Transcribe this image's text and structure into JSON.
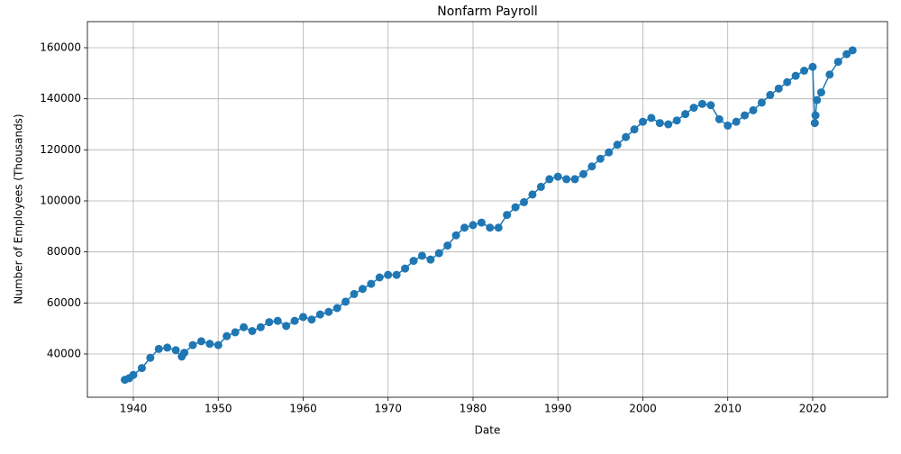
{
  "chart_data": {
    "type": "line",
    "title": "Nonfarm Payroll",
    "x_label": "Date",
    "y_label": "Number of Employees (Thousands)",
    "x": [
      1939,
      1939.5,
      1940,
      1941,
      1942,
      1943,
      1944,
      1945,
      1945.7,
      1946,
      1947,
      1948,
      1949,
      1950,
      1951,
      1952,
      1953,
      1954,
      1955,
      1956,
      1957,
      1958,
      1959,
      1960,
      1961,
      1962,
      1963,
      1964,
      1965,
      1966,
      1967,
      1968,
      1969,
      1970,
      1971,
      1972,
      1973,
      1974,
      1975,
      1976,
      1977,
      1978,
      1979,
      1980,
      1981,
      1982,
      1983,
      1984,
      1985,
      1986,
      1987,
      1988,
      1989,
      1990,
      1991,
      1992,
      1993,
      1994,
      1995,
      1996,
      1997,
      1998,
      1999,
      2000,
      2001,
      2002,
      2003,
      2004,
      2005,
      2006,
      2007,
      2008,
      2009,
      2010,
      2011,
      2012,
      2013,
      2014,
      2015,
      2016,
      2017,
      2018,
      2019,
      2020,
      2020.25,
      2020.33,
      2020.5,
      2021,
      2022,
      2023,
      2024,
      2024.7
    ],
    "values": [
      29900,
      30500,
      31800,
      34500,
      38500,
      42000,
      42500,
      41500,
      39000,
      40500,
      43500,
      45000,
      44000,
      43500,
      47000,
      48500,
      50500,
      49000,
      50500,
      52500,
      53000,
      51000,
      53000,
      54500,
      53500,
      55500,
      56500,
      58000,
      60500,
      63500,
      65500,
      67500,
      70000,
      71000,
      71000,
      73500,
      76500,
      78500,
      77000,
      79500,
      82500,
      86500,
      89500,
      90500,
      91500,
      89500,
      89500,
      94500,
      97500,
      99500,
      102500,
      105500,
      108500,
      109500,
      108500,
      108500,
      110500,
      113500,
      116500,
      119000,
      122000,
      125000,
      128000,
      131000,
      132500,
      130500,
      130000,
      131500,
      134000,
      136500,
      138000,
      137500,
      132000,
      129500,
      131000,
      133500,
      135500,
      138500,
      141500,
      144000,
      146500,
      149000,
      151000,
      152500,
      130500,
      133500,
      139500,
      142500,
      149500,
      154500,
      157500,
      159000
    ],
    "color": "#1f77b4",
    "markers": true,
    "grid": true,
    "xlim": [
      1934.59,
      2028.81
    ],
    "xticks": [
      1940,
      1950,
      1960,
      1970,
      1980,
      1990,
      2000,
      2010,
      2020
    ],
    "ylim": [
      23059,
      170235
    ],
    "yticks": [
      40000,
      60000,
      80000,
      100000,
      120000,
      140000,
      160000
    ]
  }
}
